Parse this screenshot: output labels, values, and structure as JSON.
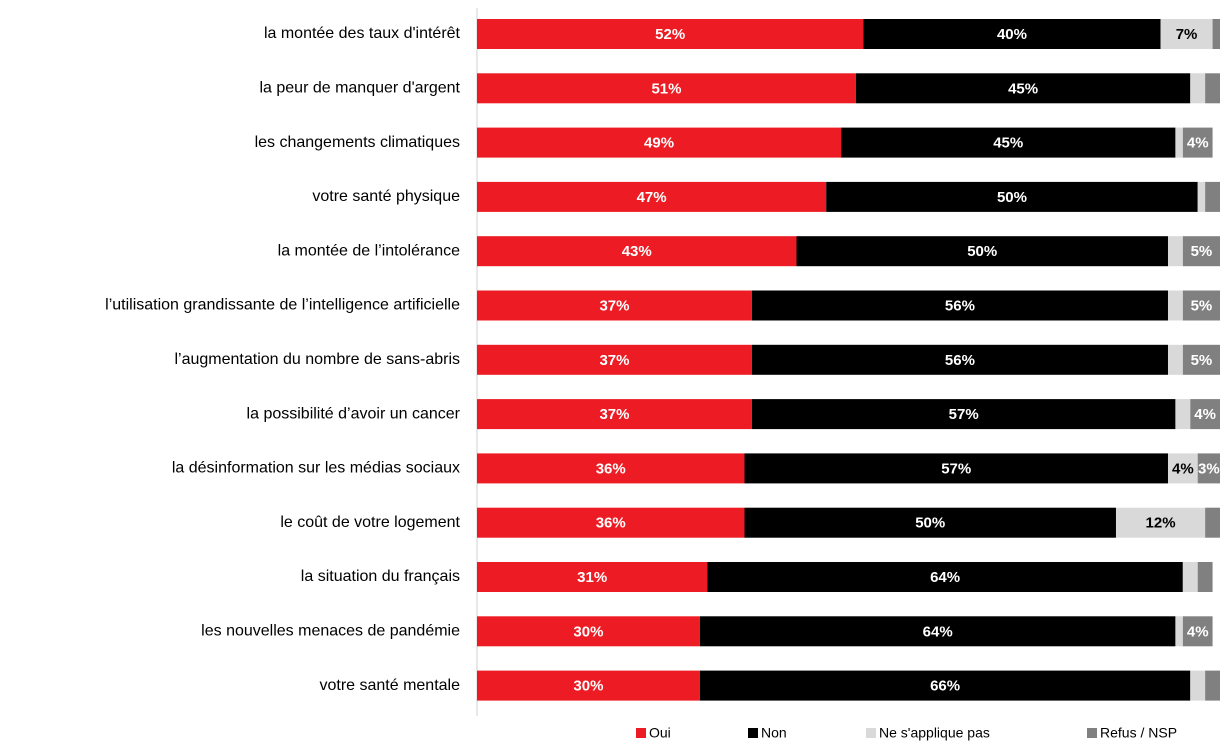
{
  "chart_data": {
    "type": "stacked_barh",
    "categories": [
      "la montée des taux d'intérêt",
      "la peur de manquer d'argent",
      "les changements climatiques",
      "votre santé physique",
      "la montée de l’intolérance",
      "l’utilisation grandissante de l’intelligence artificielle",
      "l’augmentation du nombre de sans-abris",
      "la possibilité d’avoir un cancer",
      "la désinformation sur les médias sociaux",
      "le coût de votre logement",
      "la situation du français",
      "les nouvelles menaces de pandémie",
      "votre santé mentale"
    ],
    "xlim": [
      0,
      100
    ],
    "series": [
      {
        "name": "Oui",
        "color": "#ed1c24",
        "values": [
          52,
          51,
          49,
          47,
          43,
          37,
          37,
          37,
          36,
          36,
          31,
          30,
          30
        ],
        "value_labels": [
          "52%",
          "51%",
          "49%",
          "47%",
          "43%",
          "37%",
          "37%",
          "37%",
          "36%",
          "36%",
          "31%",
          "30%",
          "30%"
        ]
      },
      {
        "name": "Non",
        "color": "#000000",
        "values": [
          40,
          45,
          45,
          50,
          50,
          56,
          56,
          57,
          57,
          50,
          64,
          64,
          66
        ],
        "value_labels": [
          "40%",
          "45%",
          "45%",
          "50%",
          "50%",
          "56%",
          "56%",
          "57%",
          "57%",
          "50%",
          "64%",
          "64%",
          "66%"
        ]
      },
      {
        "name": "Ne s'applique pas",
        "color": "#d9d9d9",
        "values": [
          7,
          2,
          1,
          1,
          2,
          2,
          2,
          2,
          4,
          12,
          2,
          1,
          2
        ],
        "value_labels": [
          "7%",
          null,
          null,
          null,
          null,
          null,
          null,
          null,
          "4%",
          "12%",
          null,
          null,
          null
        ]
      },
      {
        "name": "Refus / NSP",
        "color": "#808080",
        "values": [
          1,
          2,
          4,
          2,
          5,
          5,
          5,
          4,
          3,
          2,
          2,
          4,
          2
        ],
        "value_labels": [
          null,
          null,
          "4%",
          null,
          "5%",
          "5%",
          "5%",
          "4%",
          "3%",
          null,
          null,
          "4%",
          null
        ]
      }
    ]
  }
}
